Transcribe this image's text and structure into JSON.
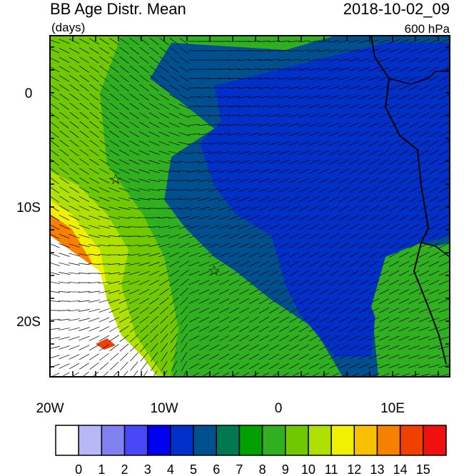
{
  "header": {
    "title": "BB Age Distr. Mean",
    "units": "(days)",
    "date": "2018-10-02_09",
    "level": "600 hPa"
  },
  "map": {
    "lat_labels": [
      "0",
      "10S",
      "20S"
    ],
    "lon_labels": [
      "20W",
      "10W",
      "0",
      "10E"
    ]
  },
  "colorbar": {
    "levels": [
      0,
      1,
      2,
      3,
      4,
      5,
      6,
      7,
      8,
      9,
      10,
      11,
      12,
      13,
      14,
      15
    ],
    "colors": [
      "#ffffff",
      "#b8b8f8",
      "#8080f0",
      "#4848f8",
      "#0000f0",
      "#0030c8",
      "#005090",
      "#007850",
      "#00a000",
      "#30b020",
      "#70c800",
      "#b0e000",
      "#f0f000",
      "#f8c000",
      "#f88000",
      "#f04000",
      "#f01010"
    ]
  }
}
